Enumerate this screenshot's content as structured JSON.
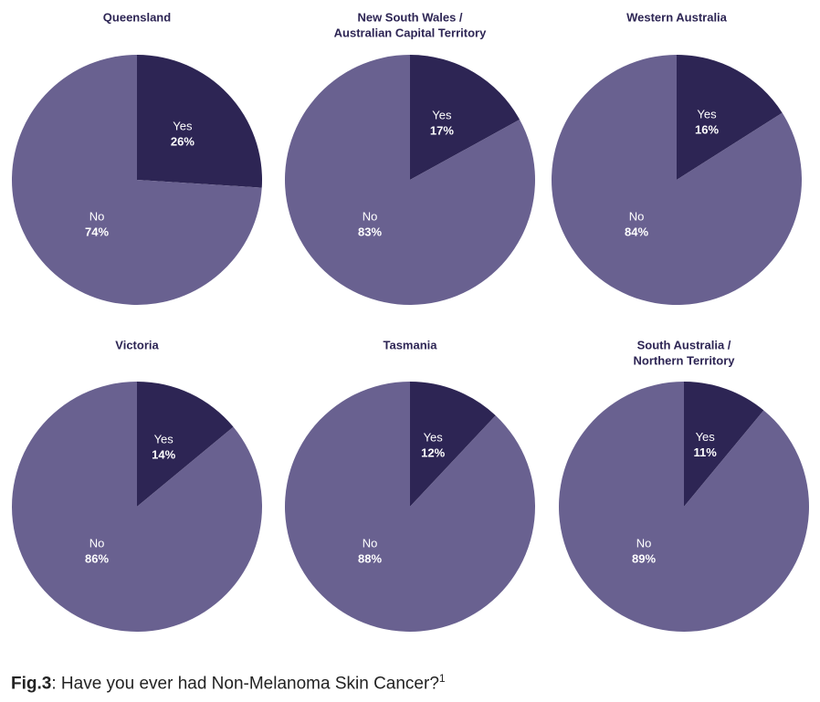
{
  "colors": {
    "yes": "#2d2554",
    "no": "#696190",
    "title": "#2d2554",
    "label": "#ffffff"
  },
  "caption": {
    "prefix": "Fig.3",
    "text": ": Have you ever had Non-Melanoma Skin Cancer?",
    "footnote": "1"
  },
  "chart_data": [
    {
      "type": "pie",
      "title_lines": [
        "Queensland"
      ],
      "slices": [
        {
          "label": "Yes",
          "value": 26
        },
        {
          "label": "No",
          "value": 74
        }
      ]
    },
    {
      "type": "pie",
      "title_lines": [
        "New South Wales /",
        "Australian Capital Territory"
      ],
      "slices": [
        {
          "label": "Yes",
          "value": 17
        },
        {
          "label": "No",
          "value": 83
        }
      ]
    },
    {
      "type": "pie",
      "title_lines": [
        "Western Australia"
      ],
      "slices": [
        {
          "label": "Yes",
          "value": 16
        },
        {
          "label": "No",
          "value": 84
        }
      ]
    },
    {
      "type": "pie",
      "title_lines": [
        "Victoria"
      ],
      "slices": [
        {
          "label": "Yes",
          "value": 14
        },
        {
          "label": "No",
          "value": 86
        }
      ]
    },
    {
      "type": "pie",
      "title_lines": [
        "Tasmania"
      ],
      "slices": [
        {
          "label": "Yes",
          "value": 12
        },
        {
          "label": "No",
          "value": 88
        }
      ]
    },
    {
      "type": "pie",
      "title_lines": [
        "South Australia /",
        "Northern Territory"
      ],
      "slices": [
        {
          "label": "Yes",
          "value": 11
        },
        {
          "label": "No",
          "value": 89
        }
      ]
    }
  ]
}
